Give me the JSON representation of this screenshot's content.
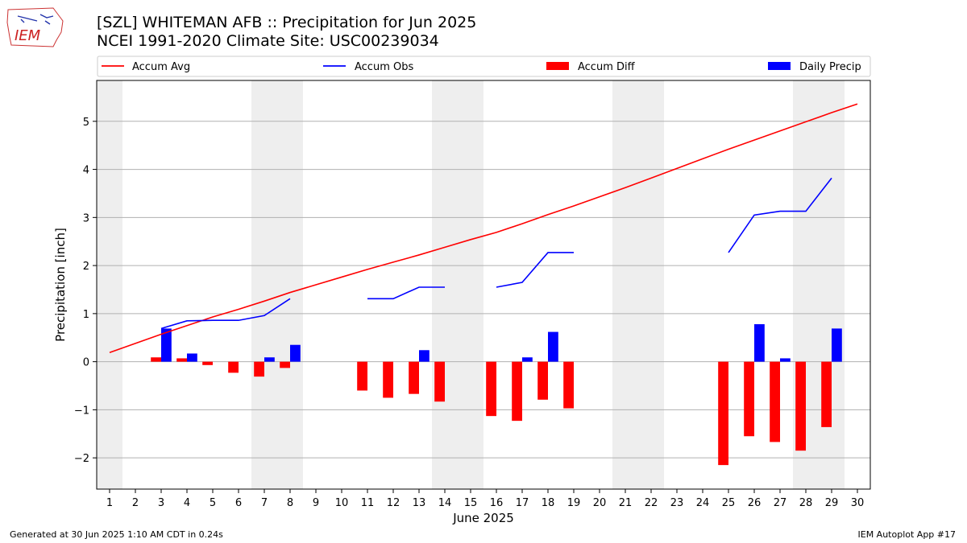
{
  "header": {
    "title_line1": "[SZL] WHITEMAN AFB :: Precipitation for Jun 2025",
    "title_line2": "NCEI 1991-2020 Climate Site: USC00239034",
    "logo_text": "IEM"
  },
  "footer": {
    "left": "Generated at 30 Jun 2025 1:10 AM CDT in 0.24s",
    "right": "IEM Autoplot App #17"
  },
  "colors": {
    "avg": "#ff0000",
    "obs": "#0000ff",
    "diff": "#ff0000",
    "daily": "#0000ff",
    "weekend_band": "#eeeeee",
    "grid": "#b0b0b0"
  },
  "chart_data": {
    "type": "bar",
    "xlabel": "June 2025",
    "ylabel": "Precipitation [inch]",
    "xlim": [
      0.5,
      30.5
    ],
    "ylim": [
      -2.65,
      5.85
    ],
    "x_ticks": [
      1,
      2,
      3,
      4,
      5,
      6,
      7,
      8,
      9,
      10,
      11,
      12,
      13,
      14,
      15,
      16,
      17,
      18,
      19,
      20,
      21,
      22,
      23,
      24,
      25,
      26,
      27,
      28,
      29,
      30
    ],
    "y_ticks": [
      -2,
      -1,
      0,
      1,
      2,
      3,
      4,
      5
    ],
    "y_tick_labels": [
      "−2",
      "−1",
      "0",
      "1",
      "2",
      "3",
      "4",
      "5"
    ],
    "grid": "horizontal",
    "weekend_bands": [
      [
        0.5,
        1.5
      ],
      [
        6.5,
        8.5
      ],
      [
        13.5,
        15.5
      ],
      [
        20.5,
        22.5
      ],
      [
        27.5,
        29.5
      ]
    ],
    "legend": {
      "placement": "top",
      "entries": [
        {
          "label": "Accum Avg",
          "kind": "line",
          "color": "#ff0000"
        },
        {
          "label": "Accum Obs",
          "kind": "line",
          "color": "#0000ff"
        },
        {
          "label": "Accum Diff",
          "kind": "bar",
          "color": "#ff0000"
        },
        {
          "label": "Daily Precip",
          "kind": "bar",
          "color": "#0000ff"
        }
      ]
    },
    "series": [
      {
        "name": "Accum Avg",
        "type": "line",
        "x": [
          1,
          2,
          3,
          4,
          5,
          6,
          7,
          8,
          9,
          10,
          11,
          12,
          13,
          14,
          15,
          16,
          17,
          18,
          19,
          20,
          21,
          22,
          23,
          24,
          25,
          26,
          27,
          28,
          29,
          30
        ],
        "values": [
          0.19,
          0.38,
          0.57,
          0.75,
          0.93,
          1.09,
          1.26,
          1.44,
          1.6,
          1.76,
          1.92,
          2.07,
          2.22,
          2.38,
          2.54,
          2.69,
          2.87,
          3.06,
          3.24,
          3.43,
          3.62,
          3.82,
          4.02,
          4.22,
          4.42,
          4.61,
          4.8,
          4.99,
          5.18,
          5.36
        ]
      },
      {
        "name": "Accum Obs",
        "type": "line",
        "x": [
          1,
          2,
          3,
          4,
          5,
          6,
          7,
          8,
          9,
          10,
          11,
          12,
          13,
          14,
          15,
          16,
          17,
          18,
          19,
          20,
          21,
          22,
          23,
          24,
          25,
          26,
          27,
          28,
          29,
          30
        ],
        "values": [
          null,
          null,
          0.69,
          0.85,
          0.86,
          0.86,
          0.96,
          1.31,
          null,
          null,
          1.31,
          1.31,
          1.55,
          1.55,
          null,
          1.55,
          1.65,
          2.27,
          2.27,
          null,
          null,
          null,
          null,
          null,
          2.27,
          3.05,
          3.13,
          3.13,
          3.82,
          null
        ]
      },
      {
        "name": "Accum Diff",
        "type": "bar",
        "x": [
          3,
          4,
          5,
          6,
          7,
          8,
          11,
          12,
          13,
          14,
          16,
          17,
          18,
          19,
          25,
          26,
          27,
          28,
          29
        ],
        "values": [
          0.09,
          0.07,
          -0.07,
          -0.23,
          -0.31,
          -0.13,
          -0.6,
          -0.75,
          -0.67,
          -0.83,
          -1.13,
          -1.23,
          -0.79,
          -0.97,
          -2.15,
          -1.55,
          -1.67,
          -1.85,
          -1.36
        ]
      },
      {
        "name": "Daily Precip",
        "type": "bar",
        "x": [
          3,
          4,
          7,
          8,
          13,
          17,
          18,
          26,
          27,
          29
        ],
        "values": [
          0.69,
          0.17,
          0.09,
          0.35,
          0.24,
          0.09,
          0.62,
          0.78,
          0.07,
          0.69
        ]
      }
    ]
  }
}
